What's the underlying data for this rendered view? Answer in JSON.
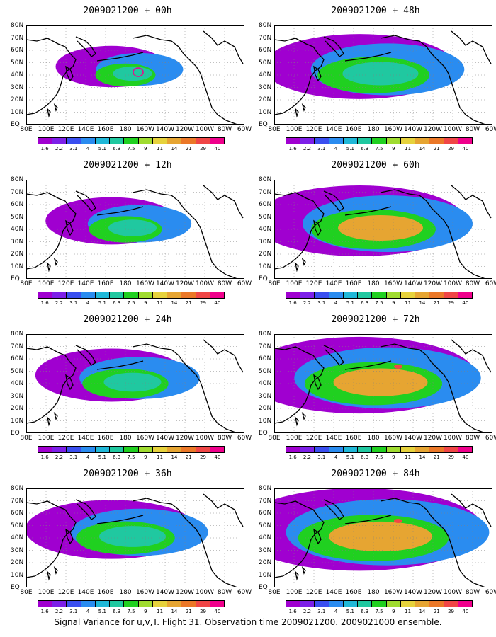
{
  "panels": [
    {
      "title": "2009021200 + 00h",
      "level": 0
    },
    {
      "title": "2009021200 + 12h",
      "level": 1
    },
    {
      "title": "2009021200 + 24h",
      "level": 2
    },
    {
      "title": "2009021200 + 36h",
      "level": 3
    },
    {
      "title": "2009021200 + 48h",
      "level": 4
    },
    {
      "title": "2009021200 + 60h",
      "level": 5
    },
    {
      "title": "2009021200 + 72h",
      "level": 6
    },
    {
      "title": "2009021200 + 84h",
      "level": 7
    }
  ],
  "lon_labels": [
    "80E",
    "100E",
    "120E",
    "140E",
    "160E",
    "180",
    "160W",
    "140W",
    "120W",
    "100W",
    "80W",
    "60W"
  ],
  "lat_labels": [
    "80N",
    "70N",
    "60N",
    "50N",
    "40N",
    "30N",
    "20N",
    "10N",
    "EQ"
  ],
  "colorbar": {
    "colors": [
      "#a000d0",
      "#7d20e8",
      "#3a4ff0",
      "#2a8cf0",
      "#20b8d8",
      "#20c8a0",
      "#20d020",
      "#a0dc30",
      "#e6d23c",
      "#e6a532",
      "#eb7828",
      "#f04646",
      "#f0008c"
    ],
    "ticks": [
      "1.6",
      "2.2",
      "3.1",
      "4",
      "5.1",
      "6.3",
      "7.5",
      "9",
      "11",
      "14",
      "21",
      "29",
      "40"
    ]
  },
  "footer": "Signal Variance for u,v,T. Flight 31. Observation time 2009021200. 2009021000 ensemble."
}
